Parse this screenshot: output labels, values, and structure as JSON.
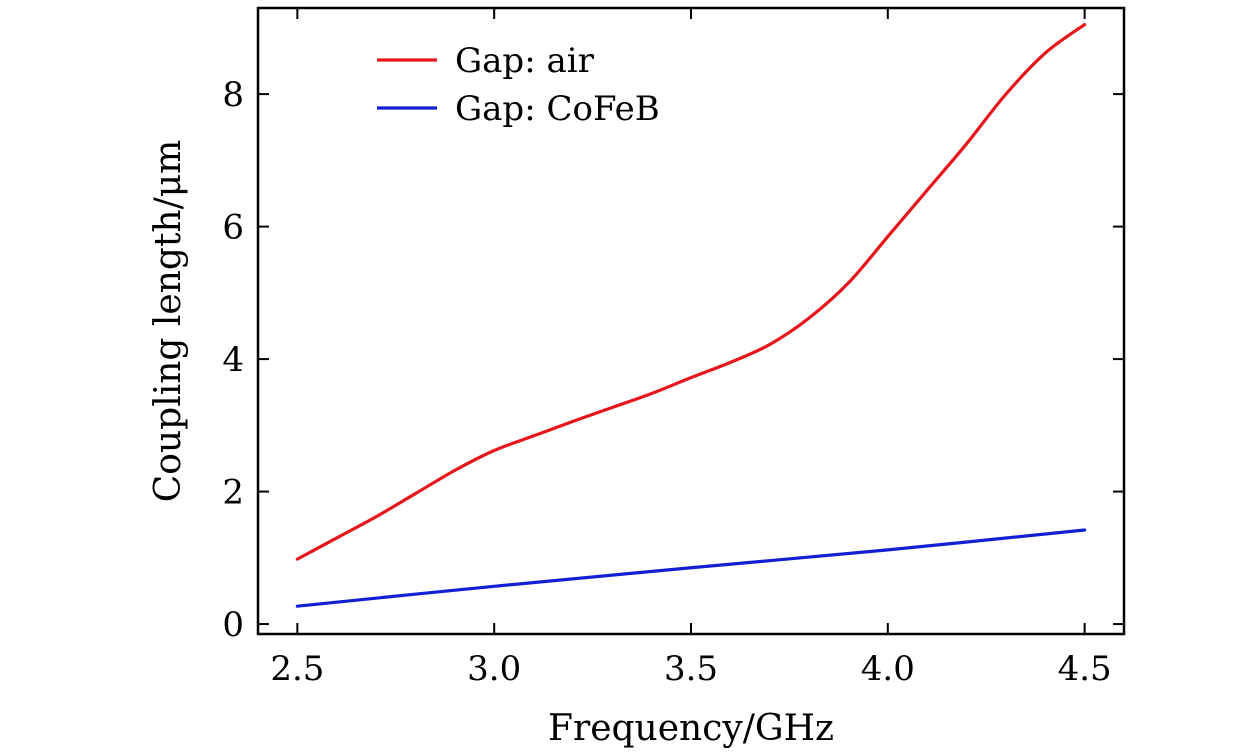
{
  "chart_data": {
    "type": "line",
    "title": "",
    "xlabel": "Frequency/GHz",
    "ylabel": "Coupling length/μm",
    "xlim": [
      2.4,
      4.6
    ],
    "ylim": [
      -0.15,
      9.3
    ],
    "xticks": [
      2.5,
      3.0,
      3.5,
      4.0,
      4.5
    ],
    "xtick_labels": [
      "2.5",
      "3.0",
      "3.5",
      "4.0",
      "4.5"
    ],
    "yticks": [
      0,
      2,
      4,
      6,
      8
    ],
    "ytick_labels": [
      "0",
      "2",
      "4",
      "6",
      "8"
    ],
    "grid": false,
    "legend_position": "top-left",
    "series": [
      {
        "name": "Gap: air",
        "color": "#e8161b",
        "x": [
          2.5,
          2.6,
          2.7,
          2.8,
          2.9,
          3.0,
          3.1,
          3.2,
          3.3,
          3.4,
          3.5,
          3.6,
          3.7,
          3.8,
          3.9,
          4.0,
          4.1,
          4.2,
          4.3,
          4.4,
          4.5
        ],
        "y": [
          0.98,
          1.3,
          1.62,
          1.97,
          2.32,
          2.62,
          2.84,
          3.06,
          3.27,
          3.48,
          3.72,
          3.95,
          4.22,
          4.62,
          5.15,
          5.85,
          6.55,
          7.25,
          8.0,
          8.62,
          9.05
        ]
      },
      {
        "name": "Gap: CoFeB",
        "color": "#1220d4",
        "x": [
          2.5,
          3.0,
          3.5,
          4.0,
          4.5
        ],
        "y": [
          0.27,
          0.57,
          0.85,
          1.12,
          1.42
        ]
      }
    ]
  }
}
